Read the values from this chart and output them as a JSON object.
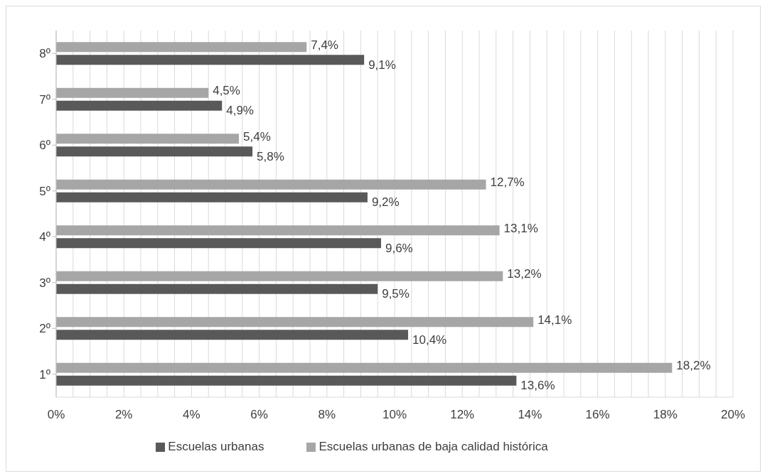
{
  "chart_data": {
    "type": "bar",
    "orientation": "horizontal",
    "categories": [
      "8º",
      "7º",
      "6º",
      "5º",
      "4º",
      "3º",
      "2º",
      "1º"
    ],
    "series": [
      {
        "name": "Escuelas urbanas de baja calidad histórica",
        "color": "#a6a6a6",
        "values": [
          7.4,
          4.5,
          5.4,
          12.7,
          13.1,
          13.2,
          14.1,
          18.2
        ],
        "value_labels": [
          "7,4%",
          "4,5%",
          "5,4%",
          "12,7%",
          "13,1%",
          "13,2%",
          "14,1%",
          "18,2%"
        ]
      },
      {
        "name": "Escuelas urbanas",
        "color": "#595959",
        "values": [
          9.1,
          4.9,
          5.8,
          9.2,
          9.6,
          9.5,
          10.4,
          13.6
        ],
        "value_labels": [
          "9,1%",
          "4,9%",
          "5,8%",
          "9,2%",
          "9,6%",
          "9,5%",
          "10,4%",
          "13,6%"
        ]
      }
    ],
    "xlim": [
      0,
      20
    ],
    "xticks": [
      {
        "value": 0,
        "label": "0%"
      },
      {
        "value": 0.5,
        "label": null
      },
      {
        "value": 1,
        "label": null
      },
      {
        "value": 1.5,
        "label": null
      },
      {
        "value": 2,
        "label": "2%"
      },
      {
        "value": 2.5,
        "label": null
      },
      {
        "value": 3,
        "label": null
      },
      {
        "value": 3.5,
        "label": null
      },
      {
        "value": 4,
        "label": "4%"
      },
      {
        "value": 4.5,
        "label": null
      },
      {
        "value": 5,
        "label": null
      },
      {
        "value": 5.5,
        "label": null
      },
      {
        "value": 6,
        "label": "6%"
      },
      {
        "value": 6.5,
        "label": null
      },
      {
        "value": 7,
        "label": null
      },
      {
        "value": 7.5,
        "label": null
      },
      {
        "value": 8,
        "label": "8%"
      },
      {
        "value": 8.5,
        "label": null
      },
      {
        "value": 9,
        "label": null
      },
      {
        "value": 9.5,
        "label": null
      },
      {
        "value": 10,
        "label": "10%"
      },
      {
        "value": 10.5,
        "label": null
      },
      {
        "value": 11,
        "label": null
      },
      {
        "value": 11.5,
        "label": null
      },
      {
        "value": 12,
        "label": "12%"
      },
      {
        "value": 12.5,
        "label": null
      },
      {
        "value": 13,
        "label": null
      },
      {
        "value": 13.5,
        "label": null
      },
      {
        "value": 14,
        "label": "14%"
      },
      {
        "value": 14.5,
        "label": null
      },
      {
        "value": 15,
        "label": null
      },
      {
        "value": 15.5,
        "label": null
      },
      {
        "value": 16,
        "label": "16%"
      },
      {
        "value": 16.5,
        "label": null
      },
      {
        "value": 17,
        "label": null
      },
      {
        "value": 17.5,
        "label": null
      },
      {
        "value": 18,
        "label": "18%"
      },
      {
        "value": 18.5,
        "label": null
      },
      {
        "value": 19,
        "label": null
      },
      {
        "value": 19.5,
        "label": null
      },
      {
        "value": 20,
        "label": "20%"
      }
    ],
    "grid": "x",
    "legend": "bottom"
  }
}
